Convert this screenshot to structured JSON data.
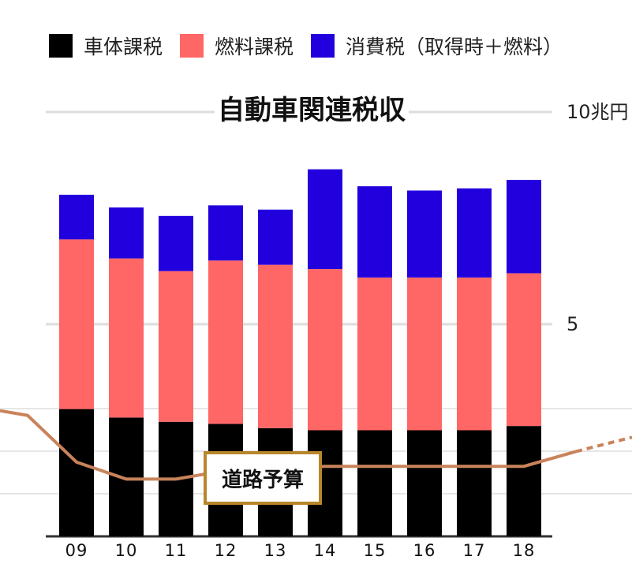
{
  "chart_data": {
    "type": "bar",
    "stacked": true,
    "title": "自動車関連税収",
    "categories": [
      "09",
      "10",
      "11",
      "12",
      "13",
      "14",
      "15",
      "16",
      "17",
      "18"
    ],
    "series": [
      {
        "name": "車体課税",
        "color": "#000000",
        "values": [
          3.0,
          2.8,
          2.7,
          2.65,
          2.55,
          2.5,
          2.5,
          2.5,
          2.5,
          2.6
        ]
      },
      {
        "name": "燃料課税",
        "color": "#ff6666",
        "values": [
          4.0,
          3.75,
          3.55,
          3.85,
          3.85,
          3.8,
          3.6,
          3.6,
          3.6,
          3.6
        ]
      },
      {
        "name": "消費税（取得時＋燃料）",
        "color": "#2200dd",
        "values": [
          1.05,
          1.2,
          1.3,
          1.3,
          1.3,
          2.35,
          2.15,
          2.05,
          2.1,
          2.2
        ]
      }
    ],
    "ylim": [
      0,
      10
    ],
    "yticks": [
      {
        "value": 10,
        "label": "10兆円"
      },
      {
        "value": 5,
        "label": "5"
      }
    ],
    "line": {
      "name": "道路予算",
      "color": "#c9835a",
      "x": [
        "08",
        "09",
        "10",
        "11",
        "12",
        "13",
        "14",
        "15",
        "16",
        "17",
        "18",
        "19"
      ],
      "values": [
        2.85,
        1.75,
        1.35,
        1.35,
        1.55,
        1.6,
        1.65,
        1.65,
        1.65,
        1.65,
        1.65,
        2.0
      ],
      "dashed_tail": true
    },
    "annotation": "道路予算",
    "legend_position": "top",
    "grid": true
  }
}
